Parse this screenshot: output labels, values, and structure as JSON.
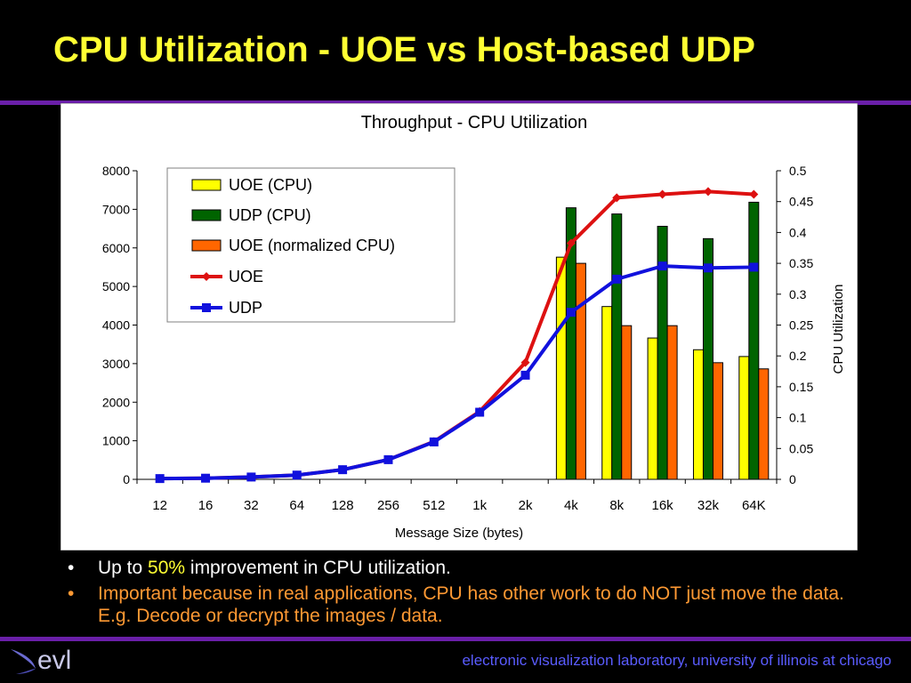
{
  "slide": {
    "title": "CPU Utilization - UOE vs Host-based UDP",
    "bullets": [
      {
        "pre": "Up to ",
        "highlight": "50%",
        "post": " improvement in CPU utilization."
      },
      {
        "text": "Important because in real applications, CPU has other work to do NOT just move the data. E.g. Decode or decrypt the images / data."
      }
    ],
    "footer": "electronic visualization laboratory, university of illinois at chicago",
    "logo_text": "evl",
    "colors": {
      "title": "#ffff33",
      "rule": "#6a1fa8",
      "bullet_alt": "#ff9933",
      "footer": "#5a5cff"
    }
  },
  "chart_data": {
    "type": "bar",
    "title": "Throughput - CPU Utilization",
    "xlabel": "Message Size (bytes)",
    "ylabel": "",
    "y2label": "CPU Utilization",
    "categories": [
      "12",
      "16",
      "32",
      "64",
      "128",
      "256",
      "512",
      "1k",
      "2k",
      "4k",
      "8k",
      "16k",
      "32k",
      "64K"
    ],
    "ylim": [
      0,
      8000
    ],
    "yticks": [
      "8000",
      "7000",
      "6000",
      "5000",
      "4000",
      "3000",
      "2000",
      "1000",
      "0"
    ],
    "y2lim": [
      0,
      0.5
    ],
    "y2ticks": [
      "0.5",
      "0.45",
      "0.4",
      "0.35",
      "0.3",
      "0.25",
      "0.2",
      "0.15",
      "0.1",
      "0.05",
      "0"
    ],
    "legend_position": "top-left",
    "grid": false,
    "bar_series": [
      {
        "name": "UOE (CPU)",
        "color": "#ffff00",
        "axis": "right",
        "values": [
          null,
          null,
          null,
          null,
          null,
          null,
          null,
          null,
          null,
          0.36,
          0.28,
          0.229,
          0.21,
          0.199
        ]
      },
      {
        "name": "UDP (CPU)",
        "color": "#006400",
        "axis": "right",
        "values": [
          null,
          null,
          null,
          null,
          null,
          null,
          null,
          null,
          null,
          0.44,
          0.43,
          0.41,
          0.39,
          0.449
        ]
      },
      {
        "name": "UOE (normalized CPU)",
        "color": "#ff6600",
        "axis": "right",
        "values": [
          null,
          null,
          null,
          null,
          null,
          null,
          null,
          null,
          null,
          0.35,
          0.249,
          0.249,
          0.189,
          0.179
        ]
      }
    ],
    "line_series": [
      {
        "name": "UOE",
        "color": "#dd1111",
        "marker": "diamond",
        "axis": "left",
        "values": [
          20,
          30,
          60,
          110,
          250,
          510,
          980,
          1760,
          3030,
          6120,
          7300,
          7390,
          7460,
          7390
        ]
      },
      {
        "name": "UDP",
        "color": "#1111dd",
        "marker": "square",
        "axis": "left",
        "values": [
          20,
          30,
          60,
          110,
          250,
          510,
          970,
          1740,
          2700,
          4330,
          5190,
          5530,
          5480,
          5500
        ]
      }
    ]
  }
}
